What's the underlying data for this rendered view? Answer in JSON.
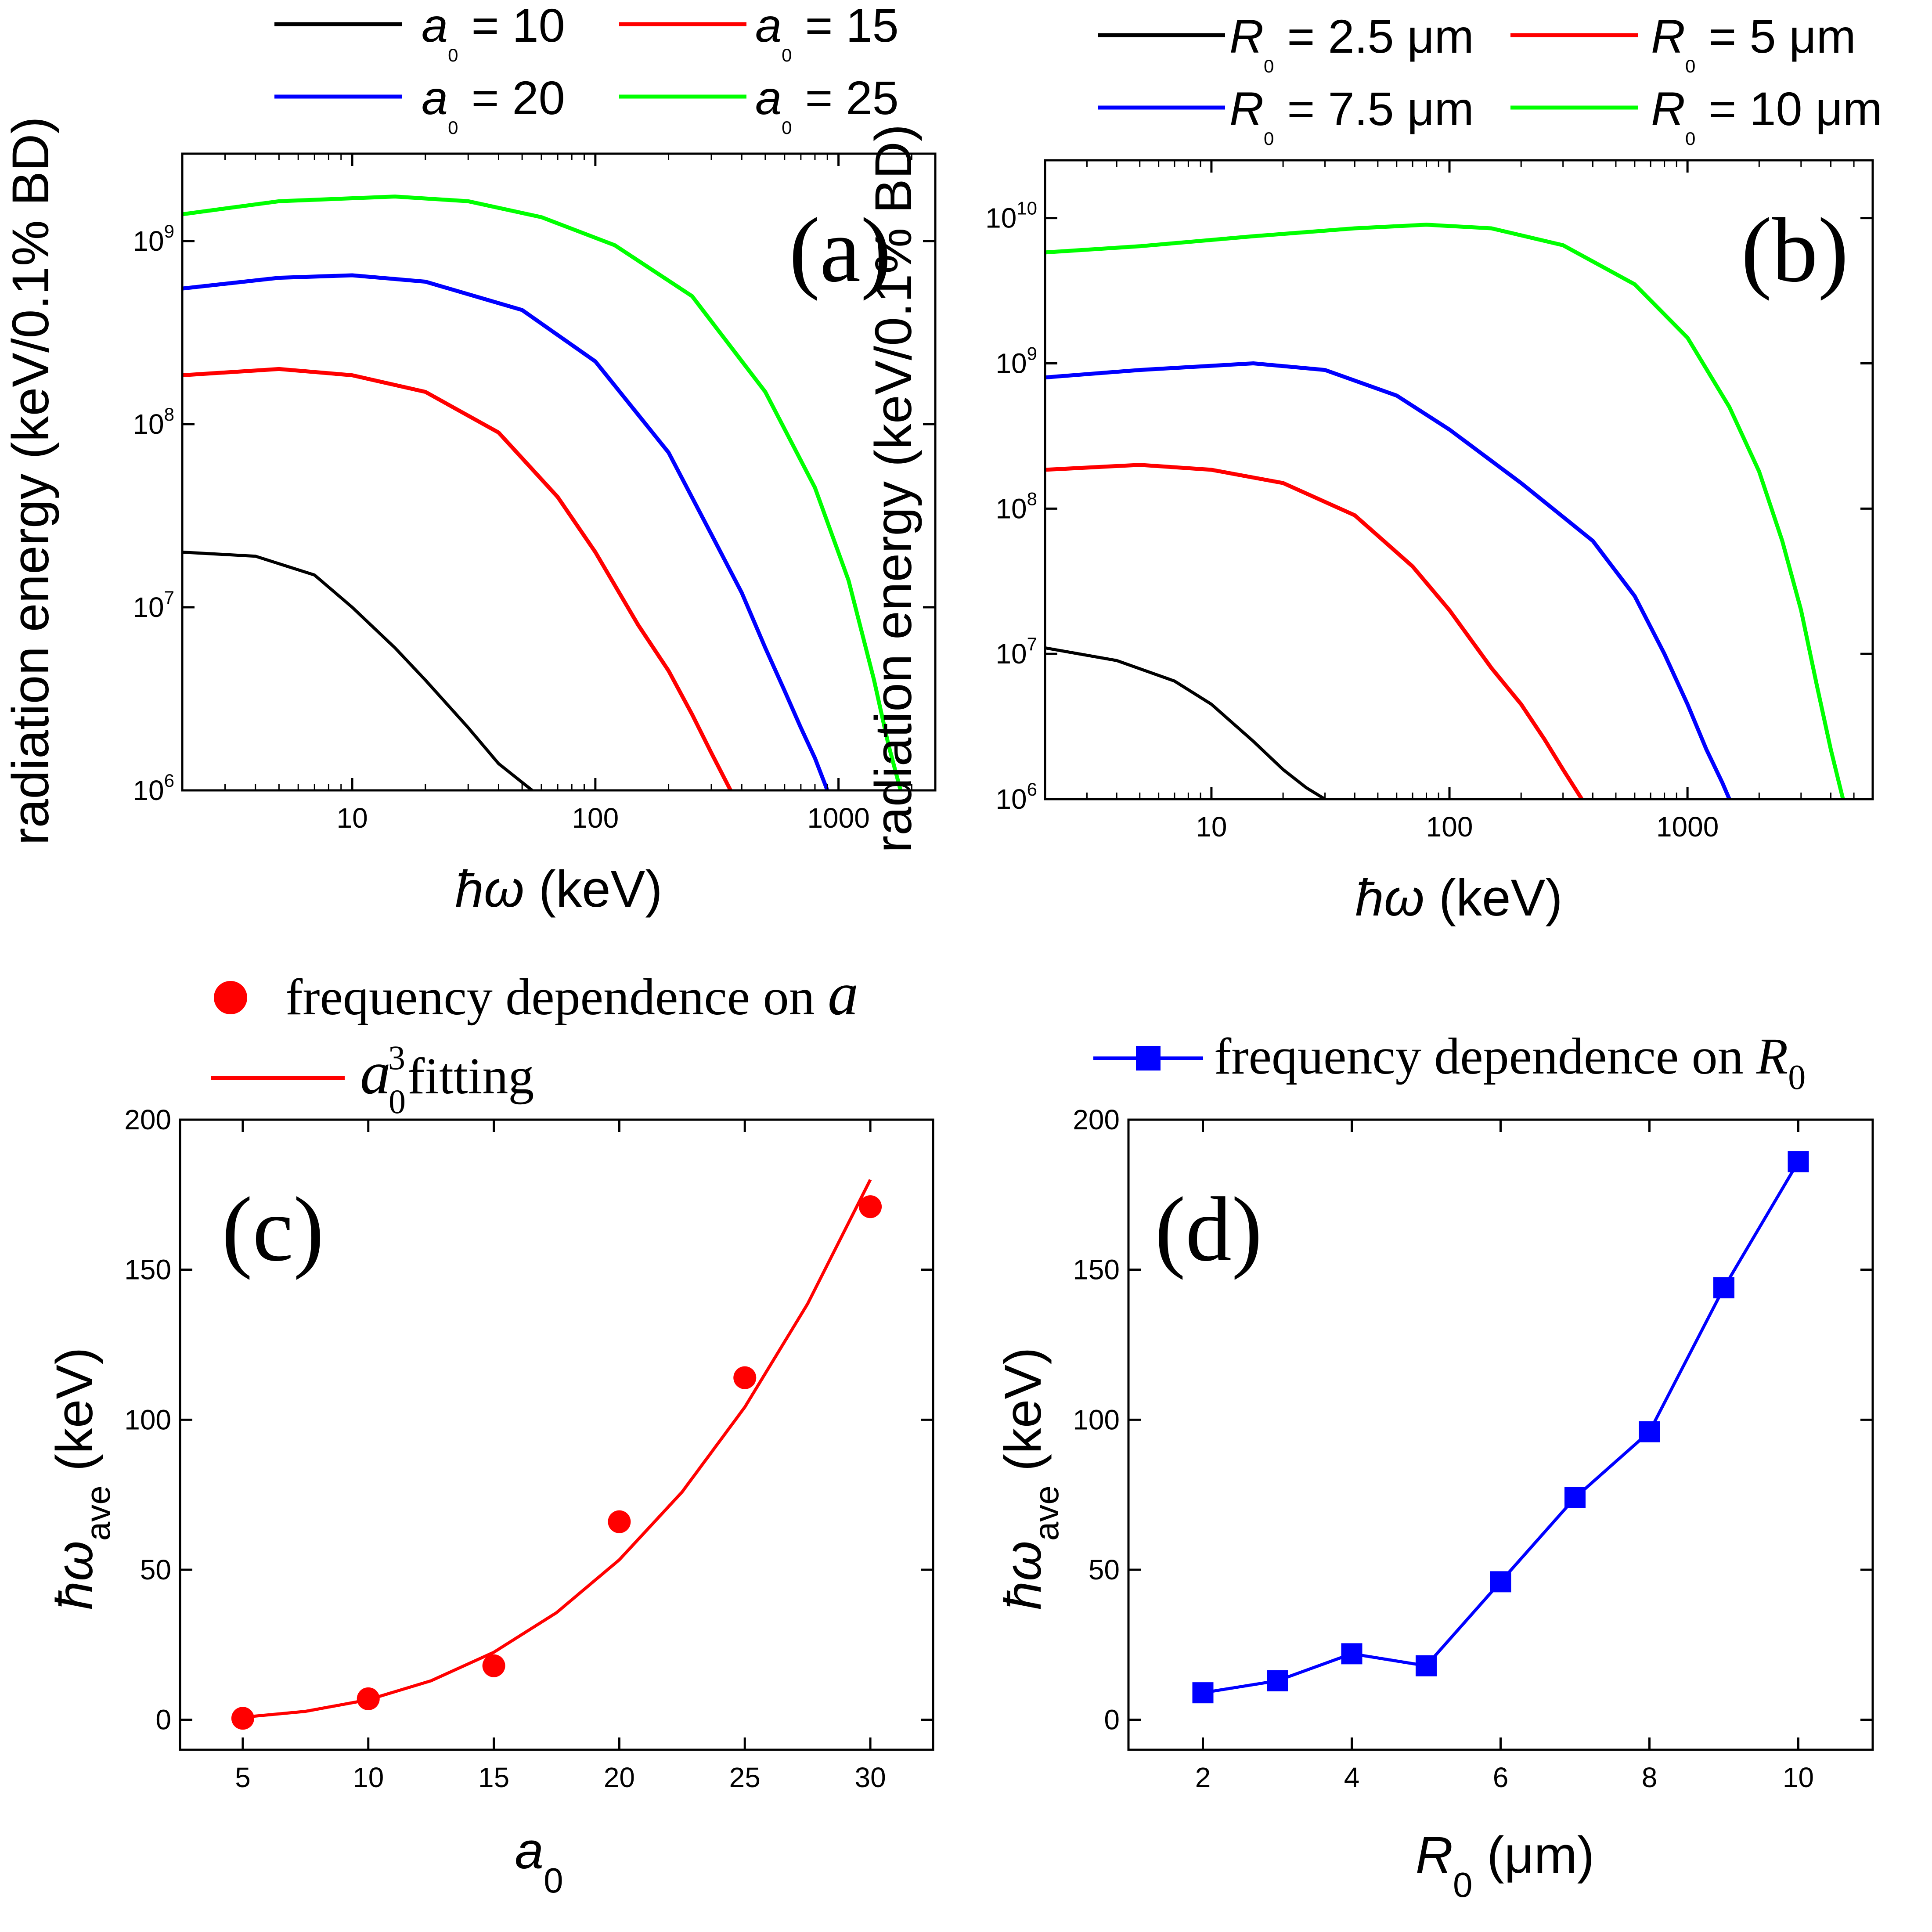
{
  "chart_data": [
    {
      "panel": "(a)",
      "type": "line",
      "xlabel": "ħω (keV)",
      "ylabel": "radiation energy (keV/0.1% BD)",
      "xscale": "log",
      "yscale": "log",
      "xlim": [
        2,
        2500
      ],
      "ylim": [
        1000000,
        3000000000
      ],
      "xticks": [
        10,
        100,
        1000
      ],
      "xtick_labels": [
        "10",
        "100",
        "1000"
      ],
      "yticks": [
        1000000,
        10000000,
        100000000,
        1000000000
      ],
      "ytick_labels": [
        [
          "10",
          "6"
        ],
        [
          "10",
          "7"
        ],
        [
          "10",
          "8"
        ],
        [
          "10",
          "9"
        ]
      ],
      "legend": "top",
      "series": [
        {
          "name": "a0 = 10",
          "label": [
            "a",
            "0",
            " = 10"
          ],
          "color": "#000000",
          "x": [
            2,
            4,
            7,
            10,
            15,
            20,
            30,
            40,
            55
          ],
          "y": [
            20000000,
            19000000,
            15000000,
            10000000,
            6000000,
            4000000,
            2200000,
            1400000,
            1000000
          ]
        },
        {
          "name": "a0 = 15",
          "label": [
            "a",
            "0",
            " = 15"
          ],
          "color": "#ff0000",
          "x": [
            2,
            5,
            10,
            20,
            40,
            70,
            100,
            150,
            200,
            250,
            300,
            360
          ],
          "y": [
            185000000,
            200000000,
            185000000,
            150000000,
            90000000,
            40000000,
            20000000,
            8000000,
            4500000,
            2600000,
            1600000,
            1000000
          ]
        },
        {
          "name": "a0 = 20",
          "label": [
            "a",
            "0",
            " = 20"
          ],
          "color": "#0000ff",
          "x": [
            2,
            5,
            10,
            20,
            50,
            100,
            200,
            300,
            400,
            500,
            600,
            700,
            800,
            900
          ],
          "y": [
            550000000,
            630000000,
            650000000,
            600000000,
            420000000,
            220000000,
            70000000,
            25000000,
            12000000,
            6000000,
            3500000,
            2200000,
            1500000,
            1000000
          ]
        },
        {
          "name": "a0 = 25",
          "label": [
            "a",
            "0",
            " = 25"
          ],
          "color": "#00ff00",
          "x": [
            2,
            5,
            15,
            30,
            60,
            120,
            250,
            500,
            800,
            1100,
            1400,
            1600,
            1800
          ],
          "y": [
            1400000000,
            1650000000,
            1750000000,
            1650000000,
            1350000000,
            950000000,
            500000000,
            150000000,
            45000000,
            14000000,
            4000000,
            1800000,
            1000000
          ]
        }
      ]
    },
    {
      "panel": "(b)",
      "type": "line",
      "xlabel": "ħω (keV)",
      "ylabel": "radiation energy (keV/0.1% BD)",
      "xscale": "log",
      "yscale": "log",
      "xlim": [
        2,
        6000
      ],
      "ylim": [
        1000000,
        25000000000
      ],
      "xticks": [
        10,
        100,
        1000
      ],
      "xtick_labels": [
        "10",
        "100",
        "1000"
      ],
      "yticks": [
        1000000,
        10000000,
        100000000,
        1000000000,
        10000000000
      ],
      "ytick_labels": [
        [
          "10",
          "6"
        ],
        [
          "10",
          "7"
        ],
        [
          "10",
          "8"
        ],
        [
          "10",
          "9"
        ],
        [
          "10",
          "10"
        ]
      ],
      "legend": "top",
      "series": [
        {
          "name": "R0 = 2.5 μm",
          "label": [
            "R",
            "0",
            " = 2.5 μm"
          ],
          "color": "#000000",
          "x": [
            2,
            4,
            7,
            10,
            15,
            20,
            25,
            30
          ],
          "y": [
            11000000,
            9000000,
            6500000,
            4500000,
            2500000,
            1600000,
            1200000,
            1000000
          ]
        },
        {
          "name": "R0 = 5 μm",
          "label": [
            "R",
            "0",
            " = 5 μm"
          ],
          "color": "#ff0000",
          "x": [
            2,
            5,
            10,
            20,
            40,
            70,
            100,
            150,
            200,
            250,
            300,
            360
          ],
          "y": [
            185000000,
            200000000,
            185000000,
            150000000,
            90000000,
            40000000,
            20000000,
            8000000,
            4500000,
            2600000,
            1600000,
            1000000
          ]
        },
        {
          "name": "R0 = 7.5 μm",
          "label": [
            "R",
            "0",
            " = 7.5 μm"
          ],
          "color": "#0000ff",
          "x": [
            2,
            5,
            15,
            30,
            60,
            100,
            200,
            400,
            600,
            800,
            1000,
            1200,
            1400,
            1500
          ],
          "y": [
            800000000,
            900000000,
            1000000000,
            900000000,
            600000000,
            350000000,
            150000000,
            60000000,
            25000000,
            10000000,
            4500000,
            2200000,
            1300000,
            1000000
          ]
        },
        {
          "name": "R0 = 10 μm",
          "label": [
            "R",
            "0",
            " = 10 μm"
          ],
          "color": "#00ff00",
          "x": [
            2,
            5,
            15,
            40,
            80,
            150,
            300,
            600,
            1000,
            1500,
            2000,
            2500,
            3000,
            3500,
            4000,
            4500
          ],
          "y": [
            5800000000,
            6400000000,
            7500000000,
            8500000000,
            9000000000,
            8500000000,
            6500000000,
            3500000000,
            1500000000,
            500000000,
            180000000,
            60000000,
            20000000,
            6000000,
            2200000,
            1000000
          ]
        }
      ]
    },
    {
      "panel": "(c)",
      "type": "scatter",
      "xlabel": [
        "a",
        "0"
      ],
      "ylabel": [
        "ħω",
        "ave",
        " (keV)"
      ],
      "xlim": [
        2.5,
        32.5
      ],
      "ylim": [
        -10,
        200
      ],
      "xticks": [
        5,
        10,
        15,
        20,
        25,
        30
      ],
      "yticks": [
        0,
        50,
        100,
        150,
        200
      ],
      "legend": "top-left",
      "series": [
        {
          "name": "frequency dependence on a",
          "label": "frequency dependence on ",
          "label_var": "a",
          "color": "#ff0000",
          "marker": "circle",
          "x": [
            5,
            10,
            15,
            20,
            25,
            30
          ],
          "y": [
            0.5,
            7,
            18,
            66,
            114,
            171
          ]
        },
        {
          "name": "a0^3 fitting",
          "label_var": "a",
          "label_sub": "0",
          "label_sup": "3",
          "label": "fitting",
          "color": "#ff0000",
          "marker": "line",
          "x": [
            5,
            7.5,
            10,
            12.5,
            15,
            17.5,
            20,
            22.5,
            25,
            27.5,
            30
          ],
          "y": [
            0.83,
            2.81,
            6.67,
            13.0,
            22.5,
            35.7,
            53.3,
            75.9,
            104.2,
            138.6,
            180
          ]
        }
      ]
    },
    {
      "panel": "(d)",
      "type": "line",
      "xlabel": [
        "R",
        "0",
        " (μm)"
      ],
      "ylabel": [
        "ħω",
        "ave",
        " (keV)"
      ],
      "xlim": [
        1,
        11
      ],
      "ylim": [
        -10,
        200
      ],
      "xticks": [
        2,
        4,
        6,
        8,
        10
      ],
      "yticks": [
        0,
        50,
        100,
        150,
        200
      ],
      "legend": "top",
      "series": [
        {
          "name": "frequency dependence on R0",
          "label": "frequency dependence on ",
          "label_var": "R",
          "label_sub": "0",
          "color": "#0000ff",
          "marker": "square",
          "x": [
            2,
            3,
            4,
            5,
            6,
            7,
            8,
            9,
            10
          ],
          "y": [
            9,
            13,
            22,
            18,
            46,
            74,
            96,
            144,
            186
          ]
        }
      ]
    }
  ]
}
